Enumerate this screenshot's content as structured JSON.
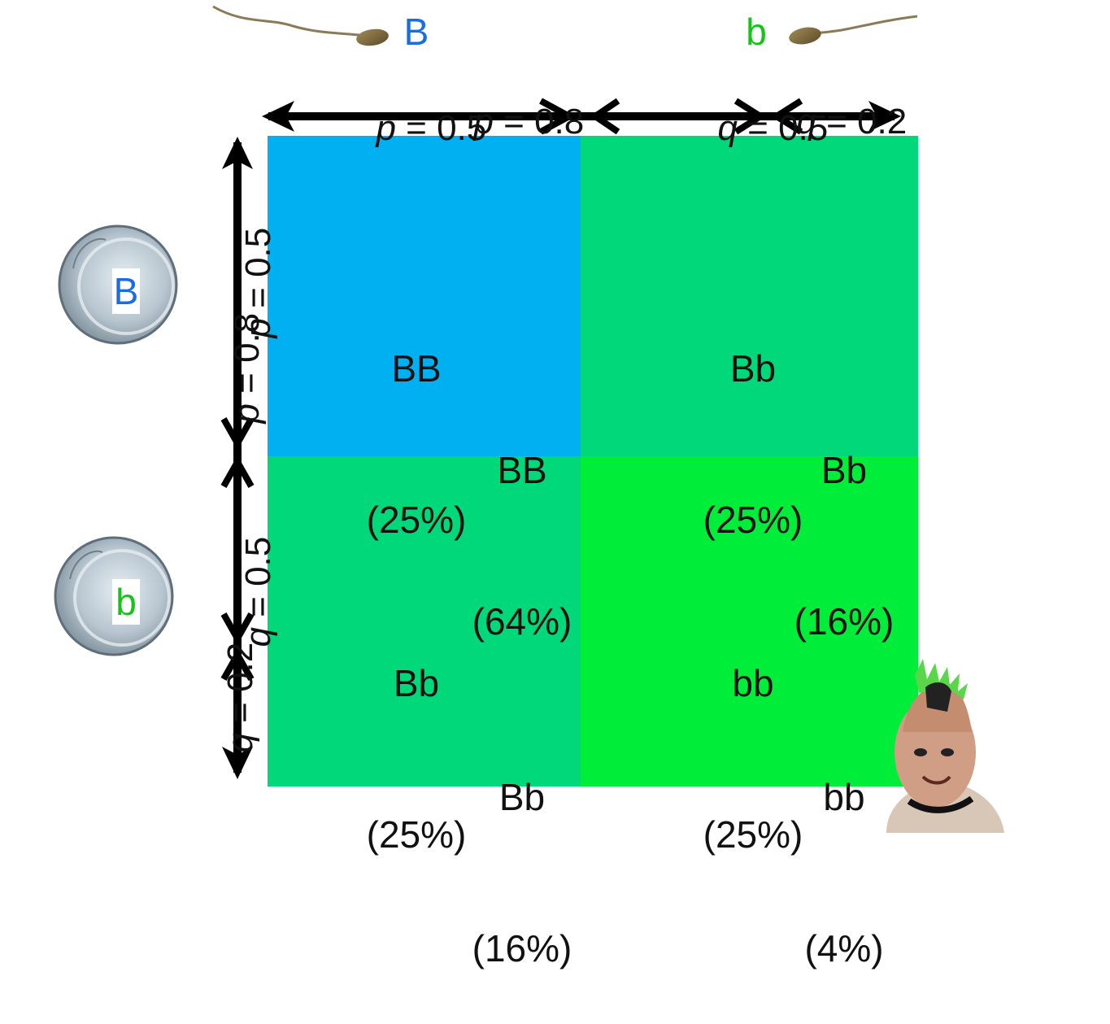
{
  "alleles_top": {
    "dominant": "B",
    "recessive": "b"
  },
  "alleles_left": {
    "dominant": "B",
    "recessive": "b"
  },
  "freq_top": {
    "p_old_var": "p",
    "p_old_val": " = 0.5",
    "p_new_var": "p",
    "p_new_val": " = 0.8",
    "q_old_var": "q",
    "q_old_val": " = 0.5",
    "q_new_var": "q",
    "q_new_val": " = 0.2"
  },
  "freq_left": {
    "p_old_var": "p",
    "p_old_val": " = 0.5",
    "p_new_var": "p",
    "p_new_val": " = 0.8",
    "q_old_var": "q",
    "q_old_val": " = 0.5",
    "q_new_var": "q",
    "q_new_val": " = 0.2"
  },
  "cells": {
    "BB_old": {
      "genotype": "BB",
      "percent": "(25%)"
    },
    "BB_new": {
      "genotype": "BB",
      "percent": "(64%)"
    },
    "Bb_top_old": {
      "genotype": "Bb",
      "percent": "(25%)"
    },
    "Bb_top_new": {
      "genotype": "Bb",
      "percent": "(16%)"
    },
    "Bb_bottom_old": {
      "genotype": "Bb",
      "percent": "(25%)"
    },
    "Bb_bottom_new": {
      "genotype": "Bb",
      "percent": "(16%)"
    },
    "bb_old": {
      "genotype": "bb",
      "percent": "(25%)"
    },
    "bb_new": {
      "genotype": "bb",
      "percent": "(4%)"
    }
  },
  "colors": {
    "BB": "#00b0f0",
    "Bb": "#00d87a",
    "bb": "#00ee3a",
    "dominant_text": "#1a6de0",
    "recessive_text": "#14c41a",
    "arrow": "#000000"
  },
  "icons": {
    "sperm_left": "sperm-icon",
    "sperm_right": "sperm-icon",
    "egg_top": "egg-cell-icon",
    "egg_bottom": "egg-cell-icon",
    "person": "punk-person-photo"
  }
}
